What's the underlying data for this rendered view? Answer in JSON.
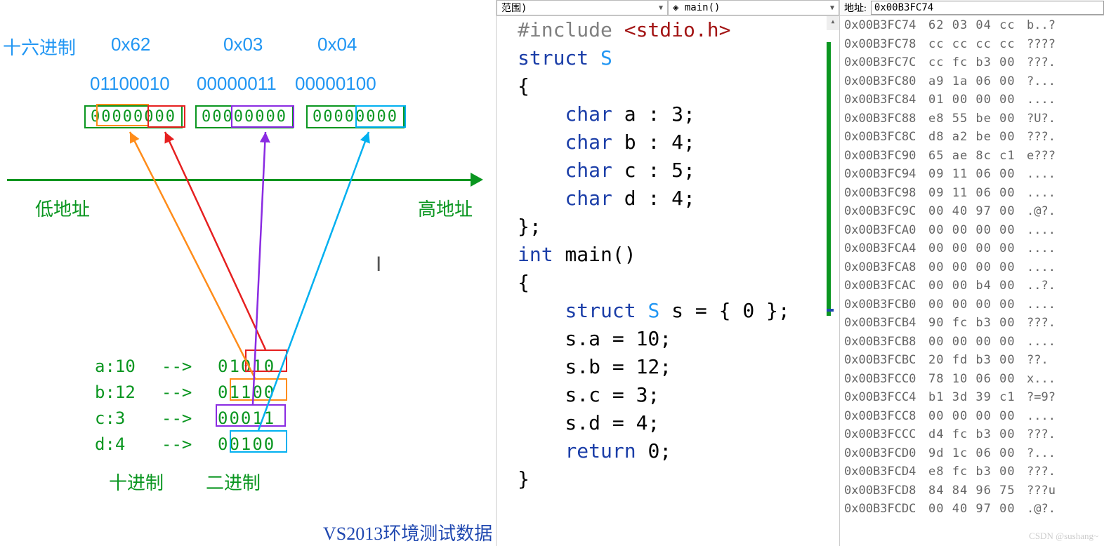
{
  "diagram": {
    "hex_row_label": "十六进制",
    "hex": [
      "0x62",
      "0x03",
      "0x04"
    ],
    "bin": [
      "01100010",
      "00000011",
      "00000100"
    ],
    "bitboxes": [
      "00000000",
      "00000000",
      "00000000"
    ],
    "low_addr": "低地址",
    "high_addr": "高地址",
    "assigns": [
      {
        "var": "a:10",
        "arrow": "-->",
        "bin": "01010"
      },
      {
        "var": "b:12",
        "arrow": "-->",
        "bin": "01100"
      },
      {
        "var": "c:3",
        "arrow": "-->",
        "bin": "00011"
      },
      {
        "var": "d:4",
        "arrow": "-->",
        "bin": "00100"
      }
    ],
    "legend_dec": "十进制",
    "legend_bin": "二进制",
    "caption": "VS2013环境测试数据",
    "colors": {
      "green": "#0a9620",
      "blue": "#2196f3",
      "red": "#e62020",
      "orange": "#ff8c1a",
      "purple": "#8a2be2",
      "cyan": "#00b0f0"
    }
  },
  "code": {
    "scope_text": "范围)",
    "func_text": "main()",
    "lines": [
      {
        "indent": 0,
        "html": "<span class='dir'>#include</span> <span class='inc'>&lt;stdio.h&gt;</span>"
      },
      {
        "indent": 0,
        "html": "<span class='kw'>struct</span> <span class='tn'>S</span>"
      },
      {
        "indent": 0,
        "html": "{"
      },
      {
        "indent": 1,
        "html": "<span class='kw'>char</span> a : 3;"
      },
      {
        "indent": 1,
        "html": "<span class='kw'>char</span> b : 4;"
      },
      {
        "indent": 1,
        "html": "<span class='kw'>char</span> c : 5;"
      },
      {
        "indent": 1,
        "html": "<span class='kw'>char</span> d : 4;"
      },
      {
        "indent": 0,
        "html": "};"
      },
      {
        "indent": 0,
        "html": "<span class='kw'>int</span> main()"
      },
      {
        "indent": 0,
        "html": "{"
      },
      {
        "indent": 1,
        "html": "<span class='kw'>struct</span> <span class='tn'>S</span> s = { 0 };"
      },
      {
        "indent": 1,
        "html": "s.a = 10;"
      },
      {
        "indent": 1,
        "html": "s.b = 12;"
      },
      {
        "indent": 1,
        "html": "s.c = 3;"
      },
      {
        "indent": 1,
        "html": "s.d = 4;"
      },
      {
        "indent": 1,
        "html": "<span class='kw'>return</span> 0;"
      },
      {
        "indent": 0,
        "html": "}"
      }
    ]
  },
  "memory": {
    "addr_label": "地址:",
    "addr_value": "0x00B3FC74",
    "rows": [
      {
        "addr": "0x00B3FC74",
        "bytes": "62 03 04 cc",
        "ascii": "b..?"
      },
      {
        "addr": "0x00B3FC78",
        "bytes": "cc cc cc cc",
        "ascii": "????"
      },
      {
        "addr": "0x00B3FC7C",
        "bytes": "cc fc b3 00",
        "ascii": "???."
      },
      {
        "addr": "0x00B3FC80",
        "bytes": "a9 1a 06 00",
        "ascii": "?..."
      },
      {
        "addr": "0x00B3FC84",
        "bytes": "01 00 00 00",
        "ascii": "...."
      },
      {
        "addr": "0x00B3FC88",
        "bytes": "e8 55 be 00",
        "ascii": "?U?."
      },
      {
        "addr": "0x00B3FC8C",
        "bytes": "d8 a2 be 00",
        "ascii": "???."
      },
      {
        "addr": "0x00B3FC90",
        "bytes": "65 ae 8c c1",
        "ascii": "e???"
      },
      {
        "addr": "0x00B3FC94",
        "bytes": "09 11 06 00",
        "ascii": "...."
      },
      {
        "addr": "0x00B3FC98",
        "bytes": "09 11 06 00",
        "ascii": "...."
      },
      {
        "addr": "0x00B3FC9C",
        "bytes": "00 40 97 00",
        "ascii": ".@?."
      },
      {
        "addr": "0x00B3FCA0",
        "bytes": "00 00 00 00",
        "ascii": "...."
      },
      {
        "addr": "0x00B3FCA4",
        "bytes": "00 00 00 00",
        "ascii": "...."
      },
      {
        "addr": "0x00B3FCA8",
        "bytes": "00 00 00 00",
        "ascii": "...."
      },
      {
        "addr": "0x00B3FCAC",
        "bytes": "00 00 b4 00",
        "ascii": "..?."
      },
      {
        "addr": "0x00B3FCB0",
        "bytes": "00 00 00 00",
        "ascii": "...."
      },
      {
        "addr": "0x00B3FCB4",
        "bytes": "90 fc b3 00",
        "ascii": "???."
      },
      {
        "addr": "0x00B3FCB8",
        "bytes": "00 00 00 00",
        "ascii": "...."
      },
      {
        "addr": "0x00B3FCBC",
        "bytes": "20 fd b3 00",
        "ascii": " ??."
      },
      {
        "addr": "0x00B3FCC0",
        "bytes": "78 10 06 00",
        "ascii": "x..."
      },
      {
        "addr": "0x00B3FCC4",
        "bytes": "b1 3d 39 c1",
        "ascii": "?=9?"
      },
      {
        "addr": "0x00B3FCC8",
        "bytes": "00 00 00 00",
        "ascii": "...."
      },
      {
        "addr": "0x00B3FCCC",
        "bytes": "d4 fc b3 00",
        "ascii": "???."
      },
      {
        "addr": "0x00B3FCD0",
        "bytes": "9d 1c 06 00",
        "ascii": "?..."
      },
      {
        "addr": "0x00B3FCD4",
        "bytes": "e8 fc b3 00",
        "ascii": "???."
      },
      {
        "addr": "0x00B3FCD8",
        "bytes": "84 84 96 75",
        "ascii": "???u"
      },
      {
        "addr": "0x00B3FCDC",
        "bytes": "00 40 97 00",
        "ascii": ".@?."
      }
    ]
  },
  "watermark": "CSDN @sushang~"
}
